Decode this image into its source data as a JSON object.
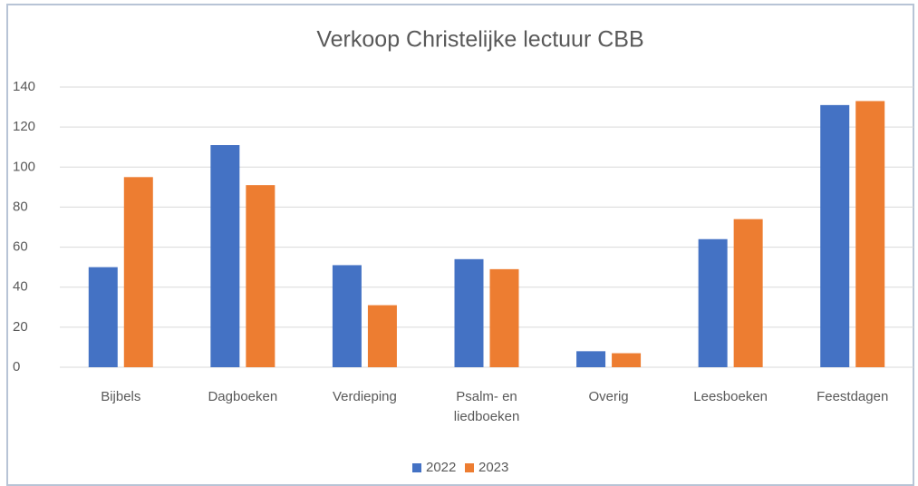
{
  "chart_data": {
    "type": "bar",
    "title": "Verkoop Christelijke lectuur CBB",
    "categories": [
      "Bijbels",
      "Dagboeken",
      "Verdieping",
      "Psalm- en liedboeken",
      "Overig",
      "Leesboeken",
      "Feestdagen"
    ],
    "series": [
      {
        "name": "2022",
        "color": "#4472c4",
        "values": [
          50,
          111,
          51,
          54,
          8,
          64,
          131
        ]
      },
      {
        "name": "2023",
        "color": "#ed7d31",
        "values": [
          95,
          91,
          31,
          49,
          7,
          74,
          133
        ]
      }
    ],
    "ylim": [
      0,
      140
    ],
    "yticks": [
      0,
      20,
      40,
      60,
      80,
      100,
      120,
      140
    ],
    "grid": true,
    "legend": "bottom"
  }
}
